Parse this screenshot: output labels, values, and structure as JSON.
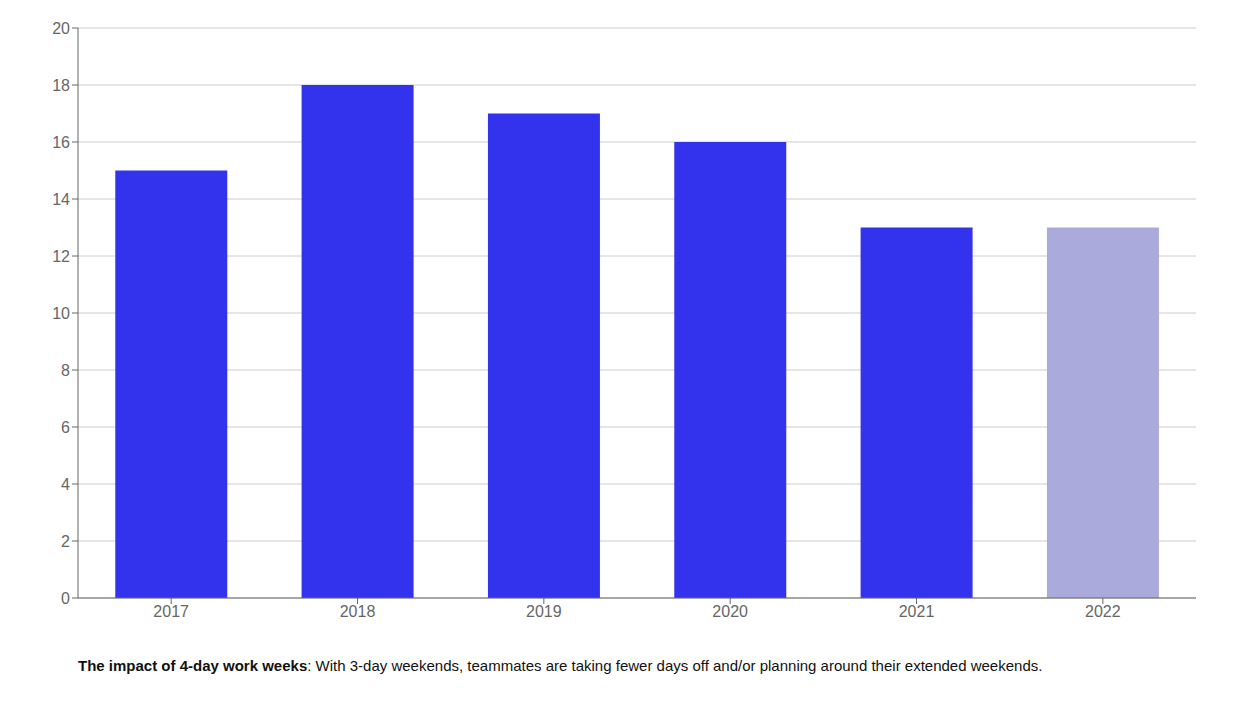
{
  "chart_data": {
    "type": "bar",
    "categories": [
      "2017",
      "2018",
      "2019",
      "2020",
      "2021",
      "2022"
    ],
    "values": [
      15,
      18,
      17,
      16,
      13,
      13
    ],
    "colors": [
      "#3333ee",
      "#3333ee",
      "#3333ee",
      "#3333ee",
      "#3333ee",
      "#aaaadd"
    ],
    "ylim": [
      0,
      20
    ],
    "yticks": [
      0,
      2,
      4,
      6,
      8,
      10,
      12,
      14,
      16,
      18,
      20
    ],
    "grid": true,
    "annotations": [
      "The impact of 4-day work weeks",
      ": With 3-day weekends, teammates are taking fewer days off and/or planning around their extended weekends."
    ]
  }
}
